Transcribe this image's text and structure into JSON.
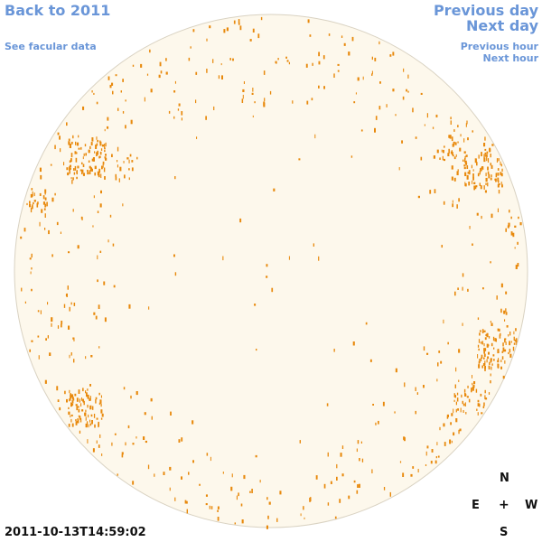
{
  "nav": {
    "back": "Back to 2011",
    "facular": "See facular data",
    "previous_day": "Previous day",
    "next_day": "Next day",
    "previous_hour": "Previous hour",
    "next_hour": "Next hour"
  },
  "compass": {
    "north": "N",
    "east": "E",
    "center": "+",
    "west": "W",
    "south": "S"
  },
  "timestamp": "2011-10-13T14:59:02",
  "colors": {
    "link": "#6a96d8",
    "disk_fill": "#fdf8ec",
    "disk_border": "#d9d2c2",
    "facula": "#e8890c"
  }
}
